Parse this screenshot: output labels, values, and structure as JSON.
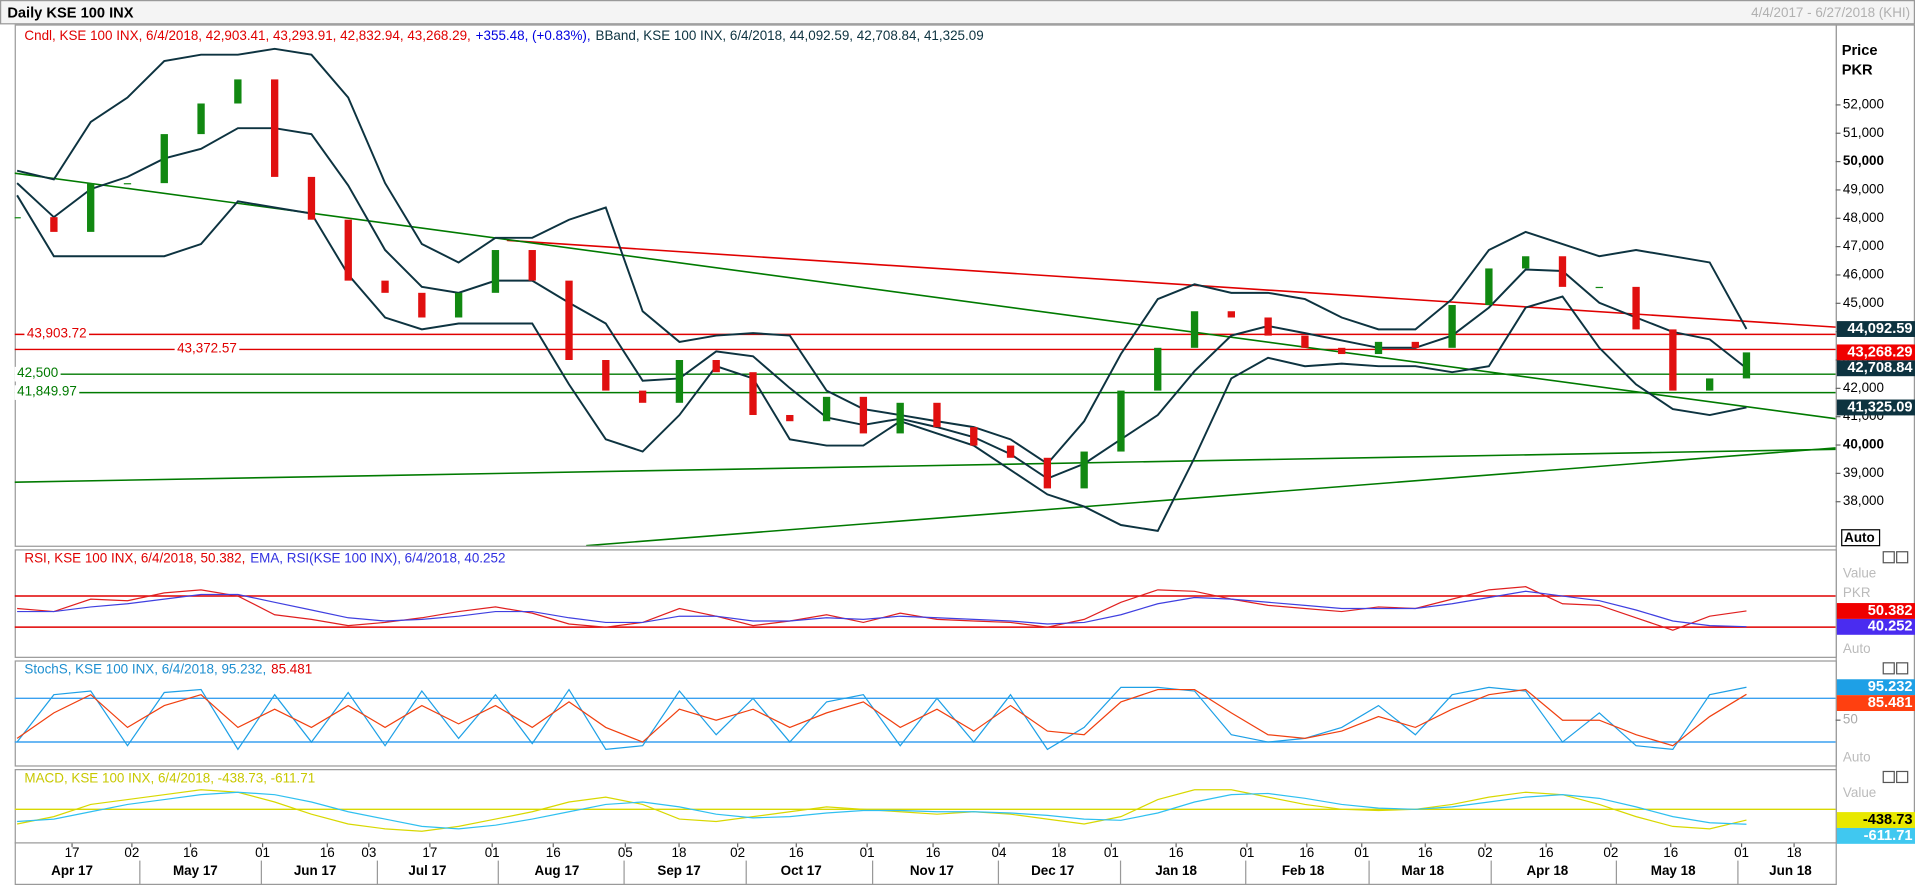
{
  "chart_data": [
    {
      "type": "candlestick",
      "title": "Daily KSE 100 INX",
      "subtitle": "4/4/2017 - 6/27/2018 (KHI)",
      "legend": [
        {
          "text": "Cndl, KSE 100 INX, 6/4/2018, 42,903.41, 43,293.91, 42,832.94, 43,268.29,",
          "color": "#e00000"
        },
        {
          "text": "+355.48, (+0.83%),",
          "color": "#0000e0"
        },
        {
          "text": "BBand, KSE 100 INX, 6/4/2018, 44,092.59, 42,708.84, 41,325.09",
          "color": "#0d3340"
        }
      ],
      "axis_title": [
        "Price",
        "PKR"
      ],
      "button": "Auto",
      "up_color": "#118811",
      "down_color": "#e01010",
      "close": [
        48040,
        47520,
        49240,
        49240,
        50970,
        52050,
        52900,
        49460,
        47950,
        45800,
        45370,
        44500,
        45370,
        46880,
        45800,
        43000,
        41920,
        41490,
        43000,
        42570,
        41060,
        40840,
        41700,
        40410,
        41490,
        40630,
        39980,
        39550,
        38470,
        39770,
        41920,
        43430,
        44720,
        44500,
        43860,
        43430,
        43210,
        43640,
        43430,
        44940,
        46230,
        46660,
        45580,
        45580,
        44080,
        41920,
        42350,
        43268.29
      ],
      "bands": [
        {
          "color": "#0d3340",
          "values": [
            49680,
            49370,
            51400,
            52260,
            53550,
            53770,
            53770,
            53980,
            53770,
            52260,
            49240,
            47090,
            46440,
            47310,
            47310,
            47950,
            48380,
            44720,
            43640,
            43860,
            43950,
            43860,
            41920,
            41270,
            41060,
            40840,
            40630,
            40200,
            39340,
            40840,
            43210,
            45150,
            45670,
            45370,
            45370,
            45150,
            44500,
            44080,
            44080,
            45150,
            46880,
            47520,
            47090,
            46660,
            46880,
            46660,
            46440,
            44092.59
          ]
        },
        {
          "color": "#0d3340",
          "values": [
            49240,
            48040,
            49030,
            49460,
            50110,
            50450,
            51180,
            51180,
            50970,
            49160,
            46880,
            45580,
            45370,
            45800,
            45800,
            45020,
            44290,
            42270,
            42350,
            43300,
            43130,
            42010,
            40970,
            40710,
            40930,
            40630,
            40280,
            39680,
            38820,
            39340,
            40200,
            41060,
            42610,
            43860,
            44200,
            43950,
            43690,
            43430,
            43430,
            43860,
            44850,
            46190,
            46140,
            45020,
            44500,
            43990,
            43730,
            42708.84
          ]
        },
        {
          "color": "#0d3340",
          "values": [
            48810,
            46660,
            46660,
            46660,
            46660,
            47090,
            48600,
            48380,
            48170,
            46010,
            44500,
            44080,
            44290,
            44290,
            44290,
            42140,
            40200,
            39770,
            41060,
            42780,
            42350,
            40200,
            39980,
            39980,
            40840,
            40410,
            39980,
            39120,
            38260,
            37830,
            37180,
            36970,
            39550,
            42350,
            43080,
            42780,
            42870,
            42780,
            42780,
            42570,
            42780,
            44850,
            45240,
            43430,
            42140,
            41270,
            41060,
            41325.09
          ]
        }
      ],
      "levels": [
        {
          "value": 43903.72,
          "label": "43,903.72",
          "color": "#e00000"
        },
        {
          "value": 43372.57,
          "label": "43,372.57",
          "color": "#e00000"
        },
        {
          "value": 42500,
          "label": "42,500",
          "color": "#007a00"
        },
        {
          "value": 41849.97,
          "label": "41,849.97",
          "color": "#007a00"
        }
      ],
      "trendlines": [
        {
          "color": "#e00000",
          "values": [
            47220,
            44160
          ]
        },
        {
          "color": "#007a00",
          "values": [
            49590,
            40930
          ]
        },
        {
          "color": "#007a00",
          "values": [
            38690,
            39850
          ]
        },
        {
          "color": "#007a00",
          "values": [
            36450,
            39900
          ]
        }
      ],
      "markers": [
        {
          "value": 44092.59,
          "label": "44,092.59",
          "color": "#0d3340"
        },
        {
          "value": 43268.29,
          "label": "43,268.29",
          "color": "#f00000"
        },
        {
          "value": 42708.84,
          "label": "42,708.84",
          "color": "#0d3340"
        },
        {
          "value": 41325.09,
          "label": "41,325.09",
          "color": "#0d3340"
        }
      ],
      "ylim": [
        36450,
        54840
      ],
      "yticks": [
        {
          "value": 38000,
          "label": "38,000"
        },
        {
          "value": 39000,
          "label": "39,000"
        },
        {
          "value": 40000,
          "label": "40,000"
        },
        {
          "value": 41000,
          "label": "41,000"
        },
        {
          "value": 42000,
          "label": "42,000"
        },
        {
          "value": 43000,
          "label": "43,000"
        },
        {
          "value": 44000,
          "label": "44,000"
        },
        {
          "value": 45000,
          "label": "45,000"
        },
        {
          "value": 46000,
          "label": "46,000"
        },
        {
          "value": 47000,
          "label": "47,000"
        },
        {
          "value": 48000,
          "label": "48,000"
        },
        {
          "value": 49000,
          "label": "49,000"
        },
        {
          "value": 50000,
          "label": "50,000"
        },
        {
          "value": 51000,
          "label": "51,000"
        },
        {
          "value": 52000,
          "label": "52,000"
        }
      ],
      "bold_ticks": [
        40000,
        50000
      ],
      "xticks_days": [
        "17",
        "02",
        "16",
        "01",
        "16",
        "03",
        "17",
        "01",
        "16",
        "05",
        "18",
        "02",
        "16",
        "01",
        "16",
        "04",
        "18",
        "01",
        "16",
        "01",
        "16",
        "01",
        "16",
        "02",
        "16",
        "02",
        "16",
        "01",
        "18"
      ],
      "xticks_months": [
        "Apr 17",
        "May 17",
        "Jun 17",
        "Jul 17",
        "Aug 17",
        "Sep 17",
        "Oct 17",
        "Nov 17",
        "Dec 17",
        "Jan 18",
        "Feb 18",
        "Mar 18",
        "Apr 18",
        "May 18",
        "Jun 18"
      ]
    },
    {
      "type": "line",
      "legend": [
        {
          "text": "RSI, KSE 100 INX, 6/4/2018, 50.382,",
          "color": "#e00000"
        },
        {
          "text": "EMA, RSI(KSE 100 INX), 6/4/2018, 40.252",
          "color": "#3030e0"
        }
      ],
      "axis_labels": [
        "Value",
        "PKR",
        "Auto"
      ],
      "ylim": [
        21,
        90
      ],
      "levels": [
        {
          "value": 60,
          "color": "#e00000"
        },
        {
          "value": 40,
          "color": "#e00000"
        }
      ],
      "series": [
        {
          "color": "#e02020",
          "values": [
            52,
            50,
            58,
            57,
            62,
            64,
            60,
            48,
            45,
            41,
            43,
            46,
            50,
            53,
            49,
            42,
            40,
            43,
            52,
            47,
            41,
            44,
            48,
            43,
            49,
            45,
            44,
            43,
            40,
            45,
            56,
            64,
            63,
            58,
            54,
            52,
            50,
            53,
            52,
            58,
            64,
            66,
            55,
            54,
            46,
            38,
            47,
            50.382
          ]
        },
        {
          "color": "#4040e0",
          "values": [
            50,
            50,
            53,
            55,
            58,
            61,
            61,
            56,
            51,
            46,
            44,
            45,
            47,
            50,
            50,
            46,
            43,
            43,
            47,
            47,
            44,
            44,
            46,
            45,
            47,
            46,
            45,
            44,
            42,
            43,
            48,
            55,
            59,
            58,
            56,
            54,
            52,
            52,
            52,
            55,
            59,
            63,
            60,
            57,
            51,
            44,
            41,
            40.252
          ]
        }
      ],
      "markers": [
        {
          "value": 50.382,
          "label": "50.382",
          "color": "#f00000"
        },
        {
          "value": 40.252,
          "label": "40.252",
          "color": "#4a2cf0"
        }
      ]
    },
    {
      "type": "line",
      "legend": [
        {
          "text": "StochS, KSE 100 INX, 6/4/2018, 95.232,",
          "color": "#1e8fd0"
        },
        {
          "text": "85.481",
          "color": "#e00000"
        }
      ],
      "axis_labels": [
        "Auto"
      ],
      "yticks": [
        50
      ],
      "ylim": [
        -12,
        132
      ],
      "levels": [
        {
          "value": 80,
          "color": "#3aa0f0"
        },
        {
          "value": 20,
          "color": "#3aa0f0"
        }
      ],
      "series": [
        {
          "color": "#1ea0e6",
          "values": [
            20,
            85,
            90,
            15,
            88,
            92,
            10,
            85,
            20,
            88,
            15,
            90,
            25,
            85,
            18,
            92,
            10,
            15,
            90,
            30,
            80,
            20,
            75,
            85,
            15,
            80,
            20,
            85,
            10,
            40,
            95,
            95,
            90,
            30,
            20,
            25,
            40,
            70,
            30,
            85,
            95,
            90,
            20,
            60,
            15,
            10,
            85,
            95.232
          ]
        },
        {
          "color": "#f04010",
          "values": [
            25,
            60,
            85,
            40,
            70,
            85,
            40,
            65,
            40,
            70,
            40,
            70,
            45,
            70,
            40,
            75,
            40,
            20,
            65,
            50,
            65,
            40,
            60,
            75,
            40,
            65,
            35,
            70,
            35,
            30,
            75,
            92,
            92,
            60,
            30,
            25,
            35,
            55,
            40,
            65,
            85,
            92,
            50,
            50,
            30,
            15,
            55,
            85.481
          ]
        }
      ],
      "markers": [
        {
          "value": 95.232,
          "label": "95.232",
          "color": "#1ea0e6"
        },
        {
          "value": 85.481,
          "label": "85.481",
          "color": "#ff4010"
        }
      ]
    },
    {
      "type": "line",
      "legend": [
        {
          "text": "MACD, KSE 100 INX, 6/4/2018, -438.73, -611.71",
          "color": "#c8c800"
        }
      ],
      "axis_labels": [
        "Value"
      ],
      "ylim": [
        -1350,
        1650
      ],
      "levels": [
        {
          "value": 0,
          "color": "#d8d800"
        }
      ],
      "series": [
        {
          "color": "#d8d800",
          "values": [
            -600,
            -300,
            200,
            400,
            600,
            800,
            700,
            300,
            -200,
            -600,
            -800,
            -900,
            -700,
            -400,
            -100,
            300,
            500,
            200,
            -400,
            -500,
            -300,
            -100,
            100,
            0,
            -100,
            -200,
            -100,
            -200,
            -400,
            -600,
            -300,
            400,
            800,
            800,
            500,
            200,
            0,
            -50,
            0,
            200,
            500,
            700,
            600,
            200,
            -300,
            -700,
            -800,
            -438.73
          ]
        },
        {
          "color": "#30c0f0",
          "values": [
            -500,
            -400,
            -100,
            200,
            400,
            600,
            700,
            600,
            300,
            -100,
            -400,
            -700,
            -800,
            -650,
            -400,
            -100,
            200,
            300,
            100,
            -200,
            -350,
            -300,
            -150,
            -50,
            -50,
            -100,
            -100,
            -150,
            -250,
            -400,
            -450,
            -150,
            300,
            600,
            650,
            450,
            200,
            50,
            0,
            100,
            300,
            500,
            600,
            450,
            100,
            -300,
            -550,
            -611.71
          ]
        }
      ],
      "markers": [
        {
          "value": -438.73,
          "label": "-438.73",
          "color": "#e8e800"
        },
        {
          "value": -611.71,
          "label": "-611.71",
          "color": "#40c8f0"
        }
      ]
    }
  ]
}
